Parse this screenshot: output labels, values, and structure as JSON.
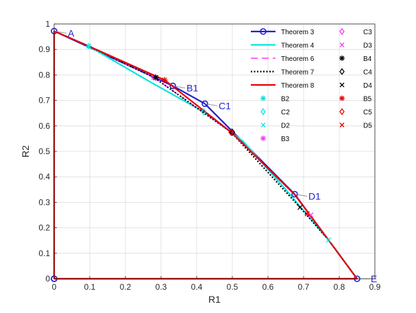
{
  "chart_data": {
    "type": "line",
    "xlabel": "R1",
    "ylabel": "R2",
    "xlim": [
      0,
      0.9
    ],
    "ylim": [
      0,
      1
    ],
    "xticks": [
      "0",
      "0.1",
      "0.2",
      "0.3",
      "0.4",
      "0.5",
      "0.6",
      "0.7",
      "0.8",
      "0.9"
    ],
    "yticks": [
      "0",
      "0.1",
      "0.2",
      "0.3",
      "0.4",
      "0.5",
      "0.6",
      "0.7",
      "0.8",
      "0.9",
      "1"
    ],
    "grid": true,
    "legend_position": "top-right",
    "series": [
      {
        "name": "Theorem 3",
        "color": "#1f1fd6",
        "style": "solid",
        "marker": "circle",
        "x": [
          0,
          0,
          0.333,
          0.423,
          0.675,
          0.85,
          0
        ],
        "y": [
          0,
          0.972,
          0.757,
          0.687,
          0.332,
          0,
          0
        ]
      },
      {
        "name": "Theorem 4",
        "color": "#00e5e5",
        "style": "solid",
        "marker": "none",
        "x": [
          0,
          0.097,
          0.26,
          0.42,
          0.53,
          0.65,
          0.77,
          0.85
        ],
        "y": [
          0.972,
          0.913,
          0.78,
          0.655,
          0.54,
          0.35,
          0.152,
          0
        ]
      },
      {
        "name": "Theorem 6",
        "color": "#ff33ff",
        "style": "dashed",
        "marker": "none",
        "x": [
          0,
          0.097,
          0.28,
          0.497,
          0.675,
          0.77,
          0.85
        ],
        "y": [
          0.972,
          0.913,
          0.79,
          0.575,
          0.33,
          0.152,
          0
        ]
      },
      {
        "name": "Theorem 7",
        "color": "#000000",
        "style": "dotted",
        "marker": "none",
        "x": [
          0,
          0.097,
          0.28,
          0.497,
          0.69,
          0.77,
          0.85
        ],
        "y": [
          0.972,
          0.913,
          0.79,
          0.575,
          0.28,
          0.152,
          0
        ]
      },
      {
        "name": "Theorem 8",
        "color": "#e60000",
        "style": "solid",
        "marker": "none",
        "x": [
          0,
          0,
          0.097,
          0.31,
          0.497,
          0.675,
          0.77,
          0.85,
          0
        ],
        "y": [
          0,
          0.972,
          0.913,
          0.78,
          0.575,
          0.33,
          0.152,
          0,
          0
        ]
      }
    ],
    "points": [
      {
        "name": "B2",
        "x": 0.097,
        "y": 0.913,
        "color": "#00e5e5",
        "marker": "asterisk"
      },
      {
        "name": "C2",
        "x": 0.42,
        "y": 0.655,
        "color": "#00e5e5",
        "marker": "diamond"
      },
      {
        "name": "D2",
        "x": 0.77,
        "y": 0.152,
        "color": "#00e5e5",
        "marker": "x"
      },
      {
        "name": "B3",
        "x": 0.28,
        "y": 0.79,
        "color": "#ff33ff",
        "marker": "asterisk"
      },
      {
        "name": "C3",
        "x": 0.497,
        "y": 0.575,
        "color": "#ff33ff",
        "marker": "diamond"
      },
      {
        "name": "D3",
        "x": 0.72,
        "y": 0.25,
        "color": "#ff33ff",
        "marker": "x"
      },
      {
        "name": "B4",
        "x": 0.285,
        "y": 0.79,
        "color": "#000000",
        "marker": "asterisk"
      },
      {
        "name": "C4",
        "x": 0.5,
        "y": 0.575,
        "color": "#000000",
        "marker": "diamond"
      },
      {
        "name": "D4",
        "x": 0.69,
        "y": 0.28,
        "color": "#000000",
        "marker": "x"
      },
      {
        "name": "B5",
        "x": 0.31,
        "y": 0.78,
        "color": "#e60000",
        "marker": "asterisk"
      },
      {
        "name": "C5",
        "x": 0.497,
        "y": 0.575,
        "color": "#e60000",
        "marker": "diamond"
      },
      {
        "name": "D5",
        "x": 0.71,
        "y": 0.255,
        "color": "#e60000",
        "marker": "x"
      }
    ],
    "annotations": [
      {
        "label": "A",
        "x": 0,
        "y": 0.972
      },
      {
        "label": "B1",
        "x": 0.333,
        "y": 0.757
      },
      {
        "label": "C1",
        "x": 0.423,
        "y": 0.687
      },
      {
        "label": "D1",
        "x": 0.675,
        "y": 0.332
      },
      {
        "label": "E",
        "x": 0.85,
        "y": 0
      }
    ],
    "annotation_color": "#1f1fd6"
  }
}
